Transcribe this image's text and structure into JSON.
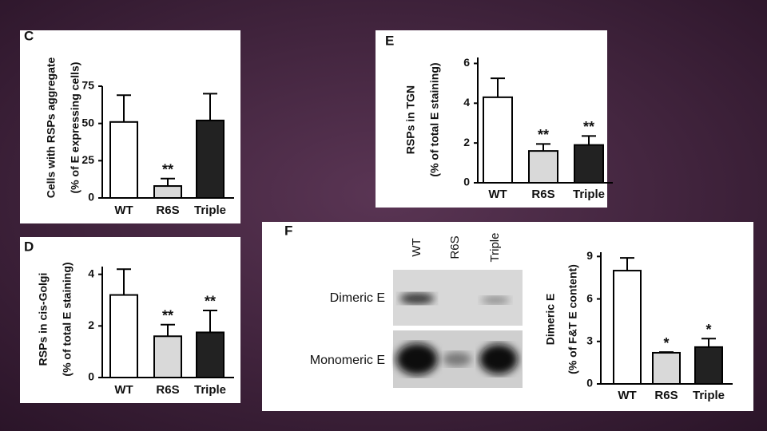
{
  "chart_data": [
    {
      "type": "bar",
      "panel": "C",
      "ylabel": [
        "Cells with RSPs aggregate",
        "(% of E expressing cells)"
      ],
      "categories": [
        "WT",
        "R6S",
        "Triple"
      ],
      "values": [
        51,
        8,
        52
      ],
      "errors": [
        18,
        5,
        18
      ],
      "colors": [
        "#ffffff",
        "#d9d9d9",
        "#222222"
      ],
      "annotations": [
        null,
        "**",
        null
      ],
      "ylim": [
        0,
        75
      ],
      "yticks": [
        0,
        25,
        50,
        75
      ]
    },
    {
      "type": "bar",
      "panel": "D",
      "ylabel": [
        "RSPs in cis-Golgi",
        "(% of total E staining)"
      ],
      "categories": [
        "WT",
        "R6S",
        "Triple"
      ],
      "values": [
        3.2,
        1.6,
        1.75
      ],
      "errors": [
        1.0,
        0.45,
        0.85
      ],
      "colors": [
        "#ffffff",
        "#d9d9d9",
        "#222222"
      ],
      "annotations": [
        null,
        "**",
        "**"
      ],
      "ylim": [
        0,
        4.3
      ],
      "yticks": [
        0,
        2,
        4
      ]
    },
    {
      "type": "bar",
      "panel": "E",
      "ylabel": [
        "RSPs in TGN",
        "(% of total E staining)"
      ],
      "categories": [
        "WT",
        "R6S",
        "Triple"
      ],
      "values": [
        4.3,
        1.6,
        1.9
      ],
      "errors": [
        0.95,
        0.35,
        0.45
      ],
      "colors": [
        "#ffffff",
        "#d9d9d9",
        "#222222"
      ],
      "annotations": [
        null,
        "**",
        "**"
      ],
      "ylim": [
        0,
        6.3
      ],
      "yticks": [
        0,
        2,
        4,
        6
      ]
    },
    {
      "type": "bar",
      "panel": "F",
      "ylabel": [
        "Dimeric E",
        "(% of F&T E content)"
      ],
      "categories": [
        "WT",
        "R6S",
        "Triple"
      ],
      "values": [
        8.0,
        2.2,
        2.6
      ],
      "errors": [
        0.9,
        0.05,
        0.6
      ],
      "colors": [
        "#ffffff",
        "#d9d9d9",
        "#222222"
      ],
      "annotations": [
        null,
        "*",
        "*"
      ],
      "ylim": [
        0,
        9.3
      ],
      "yticks": [
        0,
        3,
        6,
        9
      ]
    }
  ],
  "blot": {
    "lanes": [
      "WT",
      "R6S",
      "Triple"
    ],
    "rows": [
      "Dimeric E",
      "Monomeric E"
    ]
  }
}
